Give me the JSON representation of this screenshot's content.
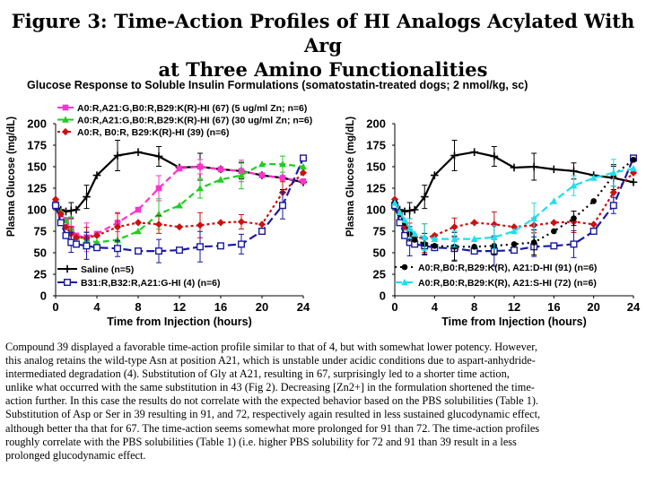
{
  "title_line1": "Figure 3: Time-Action Profiles of HI Analogs Acylated With Arg",
  "title_line2": "at Three Amino Functionalities",
  "subtitle": "Glucose Response to Soluble Insulin Formulations (somatostatin-treated dogs; 2 nmol/kg, sc)",
  "colors": {
    "black": "#000000",
    "magenta": "#ff33cc",
    "green": "#22cc22",
    "darkred": "#cc1111",
    "navy": "#1a1aa0",
    "cyan": "#22ddee"
  },
  "chart_data": [
    {
      "type": "line",
      "xlabel": "Time from Injection (hours)",
      "ylabel": "Plasma Glucose (mg/dL)",
      "xlim": [
        0,
        24
      ],
      "ylim": [
        0,
        200
      ],
      "xticks": [
        "0",
        "4",
        "8",
        "12",
        "16",
        "20",
        "24"
      ],
      "yticks": [
        "0",
        "25",
        "50",
        "75",
        "100",
        "125",
        "150",
        "175",
        "200"
      ],
      "legend_top": [
        "A0:R,A21:G,B0:R,B29:K(R)-HI (67) (5 ug/ml Zn; n=6)",
        "A0:R,A21:G,B0:R,B29:K(R)-HI (67) (30 ug/ml Zn; n=6)",
        "A0:R, B0:R, B29:K(R)-HI (39) (n=6)"
      ],
      "legend_bottom": [
        "Saline (n=5)",
        "B31:R,B32:R,A21:G-HI (4) (n=6)"
      ],
      "series": [
        {
          "name": "Saline (n=5)",
          "color": "black",
          "dash": "",
          "marker": "plus",
          "x": [
            0,
            0.5,
            1,
            1.5,
            2,
            3,
            4,
            6,
            8,
            10,
            12,
            14,
            16,
            18,
            20,
            22,
            24
          ],
          "y": [
            105,
            100,
            98,
            99,
            100,
            115,
            140,
            163,
            167,
            162,
            149,
            150,
            147,
            145,
            140,
            137,
            132
          ]
        },
        {
          "name": "A0:R,A21:G,B0:R,B29:K(R)-HI (67) (5 ug/ml Zn; n=6)",
          "color": "magenta",
          "dash": "7,4",
          "marker": "square",
          "x": [
            0,
            0.5,
            1,
            1.5,
            2,
            3,
            4,
            6,
            8,
            10,
            12,
            14,
            16,
            18,
            20,
            22,
            24
          ],
          "y": [
            108,
            95,
            88,
            78,
            70,
            68,
            72,
            85,
            100,
            125,
            148,
            150,
            147,
            145,
            140,
            137,
            133
          ]
        },
        {
          "name": "A0:R,A21:G,B0:R,B29:K(R)-HI (67) (30 ug/ml Zn; n=6)",
          "color": "green",
          "dash": "7,4",
          "marker": "triangle",
          "x": [
            0,
            0.5,
            1,
            1.5,
            2,
            3,
            4,
            6,
            8,
            10,
            12,
            14,
            16,
            18,
            20,
            22,
            24
          ],
          "y": [
            110,
            98,
            88,
            76,
            68,
            65,
            62,
            65,
            75,
            95,
            105,
            125,
            135,
            140,
            153,
            153,
            150
          ]
        },
        {
          "name": "A0:R, B0:R, B29:K(R)-HI (39) (n=6)",
          "color": "darkred",
          "dash": "3,3",
          "marker": "diamond",
          "x": [
            0,
            0.5,
            1,
            1.5,
            2,
            3,
            4,
            6,
            8,
            10,
            12,
            14,
            16,
            18,
            20,
            22,
            24
          ],
          "y": [
            112,
            95,
            80,
            72,
            68,
            67,
            70,
            80,
            85,
            83,
            80,
            82,
            85,
            86,
            83,
            120,
            143
          ]
        },
        {
          "name": "B31:R,B32:R,A21:G-HI (4) (n=6)",
          "color": "navy",
          "dash": "9,4",
          "marker": "opensquare",
          "x": [
            0,
            0.5,
            1,
            1.5,
            2,
            3,
            4,
            6,
            8,
            10,
            12,
            14,
            16,
            18,
            20,
            22,
            24
          ],
          "y": [
            105,
            85,
            70,
            62,
            60,
            58,
            56,
            55,
            52,
            52,
            53,
            57,
            58,
            60,
            75,
            105,
            160
          ]
        }
      ]
    },
    {
      "type": "line",
      "xlabel": "Time from Injection (hours)",
      "ylabel": "Plasma Glucose (mg/dL)",
      "xlim": [
        0,
        24
      ],
      "ylim": [
        0,
        200
      ],
      "xticks": [
        "0",
        "4",
        "8",
        "12",
        "16",
        "20",
        "24"
      ],
      "yticks": [
        "0",
        "25",
        "50",
        "75",
        "100",
        "125",
        "150",
        "175",
        "200"
      ],
      "legend_bottom": [
        "A0:R,B0:R,B29:K(R), A21:D-HI (91) (n=6)",
        "A0:R,B0:R,B29:K(R), A21:S-HI (72) (n=6)"
      ],
      "series": [
        {
          "name": "Saline (n=5)",
          "color": "black",
          "dash": "",
          "marker": "plus",
          "x": [
            0,
            0.5,
            1,
            1.5,
            2,
            3,
            4,
            6,
            8,
            10,
            12,
            14,
            16,
            18,
            20,
            22,
            24
          ],
          "y": [
            105,
            100,
            98,
            99,
            100,
            115,
            140,
            163,
            167,
            162,
            149,
            150,
            147,
            145,
            140,
            137,
            132
          ]
        },
        {
          "name": "A0:R, B0:R, B29:K(R)-HI (39) (n=6)",
          "color": "darkred",
          "dash": "3,3",
          "marker": "diamond",
          "x": [
            0,
            0.5,
            1,
            1.5,
            2,
            3,
            4,
            6,
            8,
            10,
            12,
            14,
            16,
            18,
            20,
            22,
            24
          ],
          "y": [
            112,
            95,
            80,
            72,
            68,
            67,
            70,
            80,
            85,
            83,
            80,
            82,
            85,
            86,
            83,
            120,
            143
          ]
        },
        {
          "name": "B31:R,B32:R,A21:G-HI (4) (n=6)",
          "color": "navy",
          "dash": "9,4",
          "marker": "opensquare",
          "x": [
            0,
            0.5,
            1,
            1.5,
            2,
            3,
            4,
            6,
            8,
            10,
            12,
            14,
            16,
            18,
            20,
            22,
            24
          ],
          "y": [
            105,
            85,
            70,
            62,
            60,
            58,
            56,
            55,
            52,
            52,
            53,
            57,
            58,
            60,
            75,
            105,
            160
          ]
        },
        {
          "name": "A0:R,B0:R,B29:K(R), A21:D-HI (91) (n=6)",
          "color": "black",
          "dash": "2,4",
          "marker": "circle",
          "x": [
            0,
            0.5,
            1,
            1.5,
            2,
            3,
            4,
            6,
            8,
            10,
            12,
            14,
            16,
            18,
            20,
            22,
            24
          ],
          "y": [
            108,
            95,
            85,
            72,
            65,
            60,
            58,
            57,
            57,
            58,
            60,
            62,
            75,
            90,
            110,
            140,
            158
          ]
        },
        {
          "name": "A0:R,B0:R,B29:K(R), A21:S-HI (72) (n=6)",
          "color": "cyan",
          "dash": "8,4",
          "marker": "triangle",
          "x": [
            0,
            0.5,
            1,
            1.5,
            2,
            3,
            4,
            6,
            8,
            10,
            12,
            14,
            16,
            18,
            20,
            22,
            24
          ],
          "y": [
            108,
            97,
            88,
            78,
            72,
            68,
            66,
            66,
            66,
            68,
            75,
            90,
            110,
            128,
            137,
            143,
            148
          ]
        }
      ]
    }
  ],
  "caption": [
    "Compound 39 displayed a favorable time-action profile similar to that of 4, but with somewhat lower potency. However,",
    "this analog retains the wild-type Asn at position A21, which is unstable under acidic conditions due to aspart-anhydride-",
    "intermediated degradation (4). Substitution of Gly at A21, resulting in 67, surprisingly led to a shorter time action,",
    "unlike what occurred with the same substitution in 43 (Fig 2). Decreasing [Zn2+] in the formulation shortened the time-",
    "action further. In this case the results do not correlate with the expected behavior based on the PBS solubilities (Table 1).",
    "Substitution of Asp or Ser in 39 resulting in 91, and 72, respectively again resulted in less sustained glucodynamic effect,",
    "although better tha that for 67. The time-action seems somewhat more prolonged for 91 than 72. The time-action profiles",
    "roughly correlate with the PBS solubilities (Table 1) (i.e. higher PBS solubility for 72 and 91 than 39 result in a less",
    "prolonged glucodynamic effect."
  ]
}
